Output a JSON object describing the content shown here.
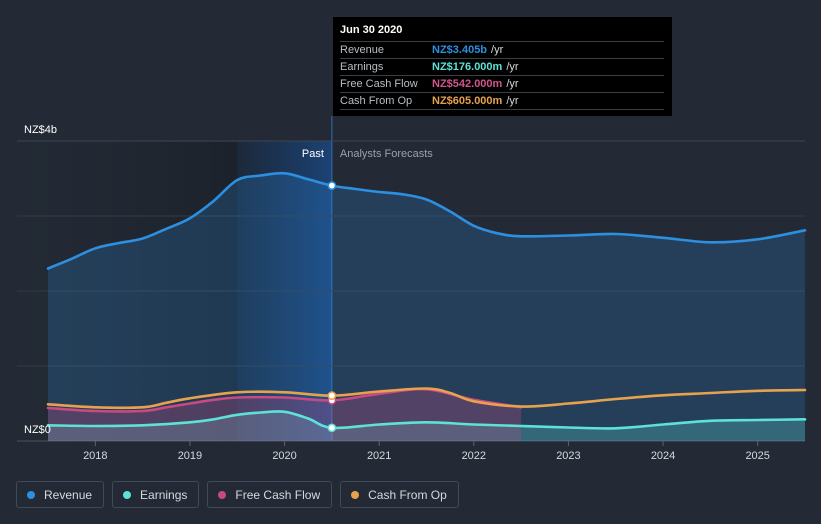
{
  "chart_data": {
    "type": "area",
    "y_axis": {
      "top_label": "NZ$4b",
      "bottom_label": "NZ$0",
      "ylim": [
        0,
        4.0
      ],
      "grid_values": [
        1,
        2,
        3
      ]
    },
    "x_axis": {
      "xlim": [
        2017.5,
        2025.5
      ],
      "ticks": [
        {
          "value": 2018,
          "label": "2018"
        },
        {
          "value": 2019,
          "label": "2019"
        },
        {
          "value": 2020,
          "label": "2020"
        },
        {
          "value": 2021,
          "label": "2021"
        },
        {
          "value": 2022,
          "label": "2022"
        },
        {
          "value": 2023,
          "label": "2023"
        },
        {
          "value": 2024,
          "label": "2024"
        },
        {
          "value": 2025,
          "label": "2025"
        }
      ]
    },
    "divider_x": 2020.5,
    "past_label": "Past",
    "forecast_label": "Analysts Forecasts",
    "series": [
      {
        "name": "Revenue",
        "color": "#2d8fe0",
        "fill": true,
        "points": [
          [
            2017.5,
            2.3
          ],
          [
            2017.75,
            2.43
          ],
          [
            2018.0,
            2.57
          ],
          [
            2018.25,
            2.64
          ],
          [
            2018.5,
            2.7
          ],
          [
            2018.75,
            2.83
          ],
          [
            2019.0,
            2.97
          ],
          [
            2019.25,
            3.2
          ],
          [
            2019.5,
            3.48
          ],
          [
            2019.75,
            3.54
          ],
          [
            2020.0,
            3.57
          ],
          [
            2020.25,
            3.49
          ],
          [
            2020.5,
            3.405
          ],
          [
            2020.75,
            3.36
          ],
          [
            2021.0,
            3.32
          ],
          [
            2021.25,
            3.29
          ],
          [
            2021.5,
            3.22
          ],
          [
            2021.75,
            3.06
          ],
          [
            2022.0,
            2.87
          ],
          [
            2022.25,
            2.77
          ],
          [
            2022.5,
            2.73
          ],
          [
            2023.0,
            2.74
          ],
          [
            2023.5,
            2.76
          ],
          [
            2024.0,
            2.71
          ],
          [
            2024.5,
            2.65
          ],
          [
            2025.0,
            2.69
          ],
          [
            2025.5,
            2.81
          ]
        ]
      },
      {
        "name": "Earnings",
        "color": "#5ee1d7",
        "fill": true,
        "points": [
          [
            2017.5,
            0.21
          ],
          [
            2018.0,
            0.2
          ],
          [
            2018.5,
            0.21
          ],
          [
            2019.0,
            0.25
          ],
          [
            2019.25,
            0.29
          ],
          [
            2019.5,
            0.35
          ],
          [
            2019.75,
            0.38
          ],
          [
            2020.0,
            0.39
          ],
          [
            2020.25,
            0.3
          ],
          [
            2020.5,
            0.176
          ],
          [
            2021.0,
            0.22
          ],
          [
            2021.5,
            0.25
          ],
          [
            2022.0,
            0.22
          ],
          [
            2022.5,
            0.2
          ],
          [
            2023.0,
            0.18
          ],
          [
            2023.5,
            0.17
          ],
          [
            2024.0,
            0.22
          ],
          [
            2024.5,
            0.27
          ],
          [
            2025.0,
            0.28
          ],
          [
            2025.5,
            0.29
          ]
        ]
      },
      {
        "name": "Free Cash Flow",
        "color": "#c84a82",
        "fill": true,
        "points": [
          [
            2017.5,
            0.44
          ],
          [
            2018.0,
            0.4
          ],
          [
            2018.5,
            0.4
          ],
          [
            2018.75,
            0.45
          ],
          [
            2019.0,
            0.5
          ],
          [
            2019.25,
            0.55
          ],
          [
            2019.5,
            0.58
          ],
          [
            2020.0,
            0.58
          ],
          [
            2020.5,
            0.542
          ],
          [
            2021.0,
            0.63
          ],
          [
            2021.5,
            0.69
          ],
          [
            2022.0,
            0.55
          ],
          [
            2022.5,
            0.45
          ]
        ]
      },
      {
        "name": "Cash From Op",
        "color": "#e8a24e",
        "fill": false,
        "points": [
          [
            2017.5,
            0.49
          ],
          [
            2018.0,
            0.45
          ],
          [
            2018.5,
            0.45
          ],
          [
            2018.75,
            0.51
          ],
          [
            2019.0,
            0.57
          ],
          [
            2019.5,
            0.65
          ],
          [
            2020.0,
            0.65
          ],
          [
            2020.5,
            0.605
          ],
          [
            2021.0,
            0.66
          ],
          [
            2021.5,
            0.7
          ],
          [
            2021.75,
            0.64
          ],
          [
            2022.0,
            0.53
          ],
          [
            2022.5,
            0.46
          ],
          [
            2023.0,
            0.5
          ],
          [
            2023.5,
            0.56
          ],
          [
            2024.0,
            0.61
          ],
          [
            2024.5,
            0.64
          ],
          [
            2025.0,
            0.67
          ],
          [
            2025.5,
            0.68
          ]
        ]
      }
    ],
    "highlight": {
      "x": 2020.5
    }
  },
  "tooltip": {
    "date": "Jun 30 2020",
    "rows": [
      {
        "label": "Revenue",
        "value": "NZ$3.405b",
        "unit": "/yr",
        "color": "#2d8fe0"
      },
      {
        "label": "Earnings",
        "value": "NZ$176.000m",
        "unit": "/yr",
        "color": "#5ee1d7"
      },
      {
        "label": "Free Cash Flow",
        "value": "NZ$542.000m",
        "unit": "/yr",
        "color": "#c84a82"
      },
      {
        "label": "Cash From Op",
        "value": "NZ$605.000m",
        "unit": "/yr",
        "color": "#e8a24e"
      }
    ]
  },
  "legend": [
    {
      "label": "Revenue",
      "color": "#2d8fe0"
    },
    {
      "label": "Earnings",
      "color": "#5ee1d7"
    },
    {
      "label": "Free Cash Flow",
      "color": "#c84a82"
    },
    {
      "label": "Cash From Op",
      "color": "#e8a24e"
    }
  ]
}
